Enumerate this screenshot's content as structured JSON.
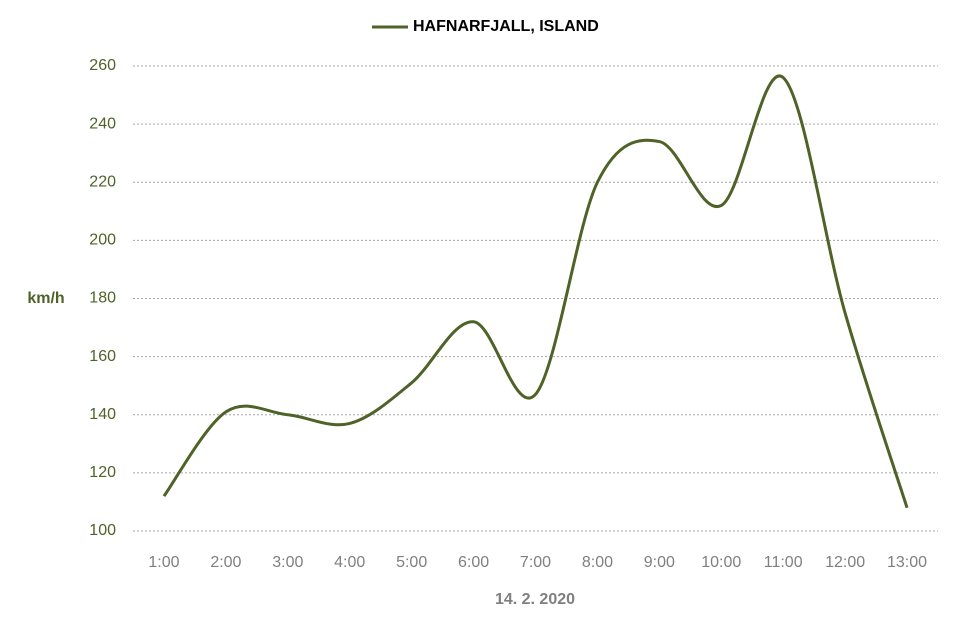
{
  "chart_data": {
    "type": "line",
    "categories": [
      "1:00",
      "2:00",
      "3:00",
      "4:00",
      "5:00",
      "6:00",
      "7:00",
      "8:00",
      "9:00",
      "10:00",
      "11:00",
      "12:00",
      "13:00"
    ],
    "series": [
      {
        "name": "HAFNARFJALL, ISLAND",
        "color": "#4f6228",
        "values": [
          112,
          141,
          140,
          137,
          151,
          172,
          147,
          220,
          234,
          212,
          256,
          175,
          108
        ]
      }
    ],
    "ylabel": "km/h",
    "xlabel": "14. 2. 2020",
    "ylim": [
      100,
      260
    ],
    "yticks": [
      100,
      120,
      140,
      160,
      180,
      200,
      220,
      240,
      260
    ],
    "grid": true,
    "smooth": true,
    "legend": "top"
  }
}
